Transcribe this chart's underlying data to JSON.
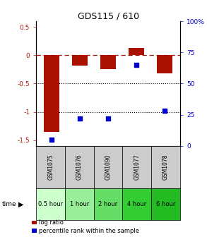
{
  "title": "GDS115 / 610",
  "categories": [
    "GSM1075",
    "GSM1076",
    "GSM1090",
    "GSM1077",
    "GSM1078"
  ],
  "time_labels": [
    "0.5 hour",
    "1 hour",
    "2 hour",
    "4 hour",
    "6 hour"
  ],
  "log_ratios": [
    -1.35,
    -0.18,
    -0.25,
    0.13,
    -0.32
  ],
  "percentile_ranks": [
    5,
    22,
    22,
    65,
    28
  ],
  "bar_color": "#aa1100",
  "dot_color": "#0000cc",
  "ylim_left": [
    -1.6,
    0.6
  ],
  "ylim_right": [
    0,
    100
  ],
  "yticks_left": [
    0.5,
    0,
    -0.5,
    -1.0,
    -1.5
  ],
  "ytick_labels_left": [
    "0.5",
    "0",
    "-0.5",
    "-1",
    "-1.5"
  ],
  "yticks_right": [
    100,
    75,
    50,
    25,
    0
  ],
  "ytick_labels_right": [
    "100%",
    "75",
    "50",
    "25",
    "0"
  ],
  "label_log": "log ratio",
  "label_pct": "percentile rank within the sample",
  "gsm_bg": "#cccccc",
  "time_colors": [
    "#ccffcc",
    "#99ee99",
    "#66dd66",
    "#33cc33",
    "#22bb22"
  ],
  "bar_width": 0.55,
  "title_fontsize": 9,
  "tick_fontsize": 6.5,
  "gsm_fontsize": 5.5,
  "time_fontsize": 6.0,
  "legend_fontsize": 6.0
}
